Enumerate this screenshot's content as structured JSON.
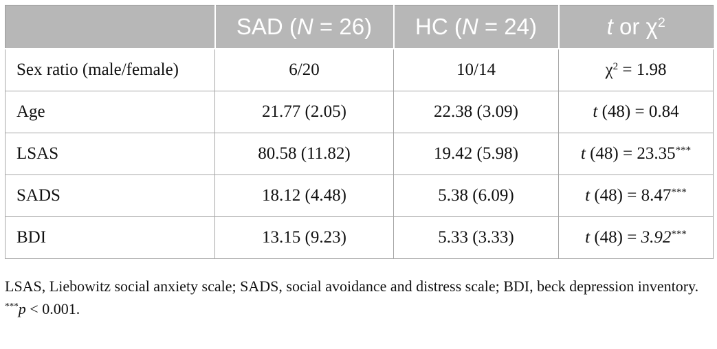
{
  "table": {
    "headers": {
      "col0": "",
      "col1_group": "SAD (",
      "col1_n": "N",
      "col1_count": " = 26)",
      "col2_group": "HC (",
      "col2_n": "N",
      "col2_count": " = 24)",
      "col3_t": "t",
      "col3_or": " or χ",
      "col3_sup": "2"
    },
    "rows": [
      {
        "label": "Sex ratio (male/female)",
        "sad": "6/20",
        "hc": "10/14",
        "stat_prefix": "",
        "stat_chi": "χ",
        "stat_sup": "2",
        "stat_value": " = 1.98",
        "stat_italic_value": "",
        "stat_stars": ""
      },
      {
        "label": "Age",
        "sad": "21.77 (2.05)",
        "hc": "22.38 (3.09)",
        "stat_t": "t",
        "stat_value": " (48) = 0.84",
        "stat_stars": ""
      },
      {
        "label": "LSAS",
        "sad": "80.58 (11.82)",
        "hc": "19.42 (5.98)",
        "stat_t": "t",
        "stat_value": " (48) = 23.35",
        "stat_stars": "***"
      },
      {
        "label": "SADS",
        "sad": "18.12 (4.48)",
        "hc": "5.38 (6.09)",
        "stat_t": "t",
        "stat_value": " (48) = 8.47",
        "stat_stars": "***"
      },
      {
        "label": "BDI",
        "sad": "13.15 (9.23)",
        "hc": "5.33 (3.33)",
        "stat_t": "t",
        "stat_value": " (48) = ",
        "stat_italic_value": "3.92",
        "stat_stars": "***"
      }
    ]
  },
  "notes": {
    "abbreviations": "LSAS, Liebowitz social anxiety scale; SADS, social avoidance and distress scale; BDI, beck depression inventory.",
    "sig_stars": "***",
    "sig_p": "p",
    "sig_text": " < 0.001."
  }
}
